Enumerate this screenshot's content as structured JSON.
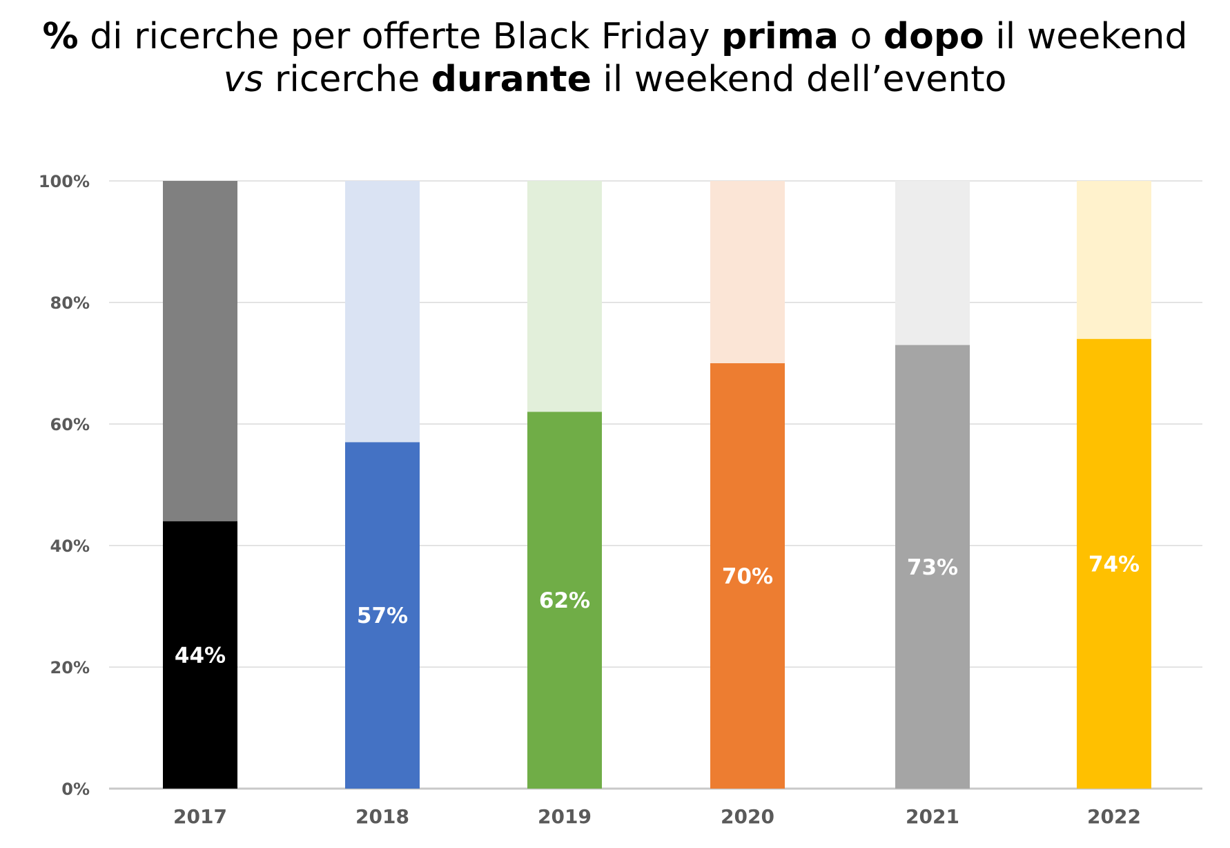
{
  "title": {
    "line1": {
      "pct": "%",
      "a": " di ricerche per offerte Black Friday ",
      "prima": "prima",
      "o": " o ",
      "dopo": "dopo",
      "b": " il weekend"
    },
    "line2": {
      "vs": "vs",
      "a": " ricerche ",
      "durante": "durante",
      "b": " il weekend dell’evento"
    }
  },
  "chart_data": {
    "type": "bar",
    "stacked": true,
    "title": "% di ricerche per offerte Black Friday prima o dopo il weekend vs ricerche durante il weekend dell’evento",
    "categories": [
      "2017",
      "2018",
      "2019",
      "2020",
      "2021",
      "2022"
    ],
    "values": [
      44,
      57,
      62,
      70,
      73,
      74
    ],
    "data_labels": [
      "44%",
      "57%",
      "62%",
      "70%",
      "73%",
      "74%"
    ],
    "total": 100,
    "colors_main": [
      "#000000",
      "#4472c4",
      "#70ad47",
      "#ed7d31",
      "#a5a5a5",
      "#ffc000"
    ],
    "colors_rest": [
      "#808080",
      "#dae3f3",
      "#e2efda",
      "#fbe5d6",
      "#ededed",
      "#fff2cc"
    ],
    "ylim": [
      0,
      100
    ],
    "yticks": [
      0,
      20,
      40,
      60,
      80,
      100
    ],
    "ytick_labels": [
      "0%",
      "20%",
      "40%",
      "60%",
      "80%",
      "100%"
    ],
    "grid": true,
    "xlabel": "",
    "ylabel": ""
  }
}
